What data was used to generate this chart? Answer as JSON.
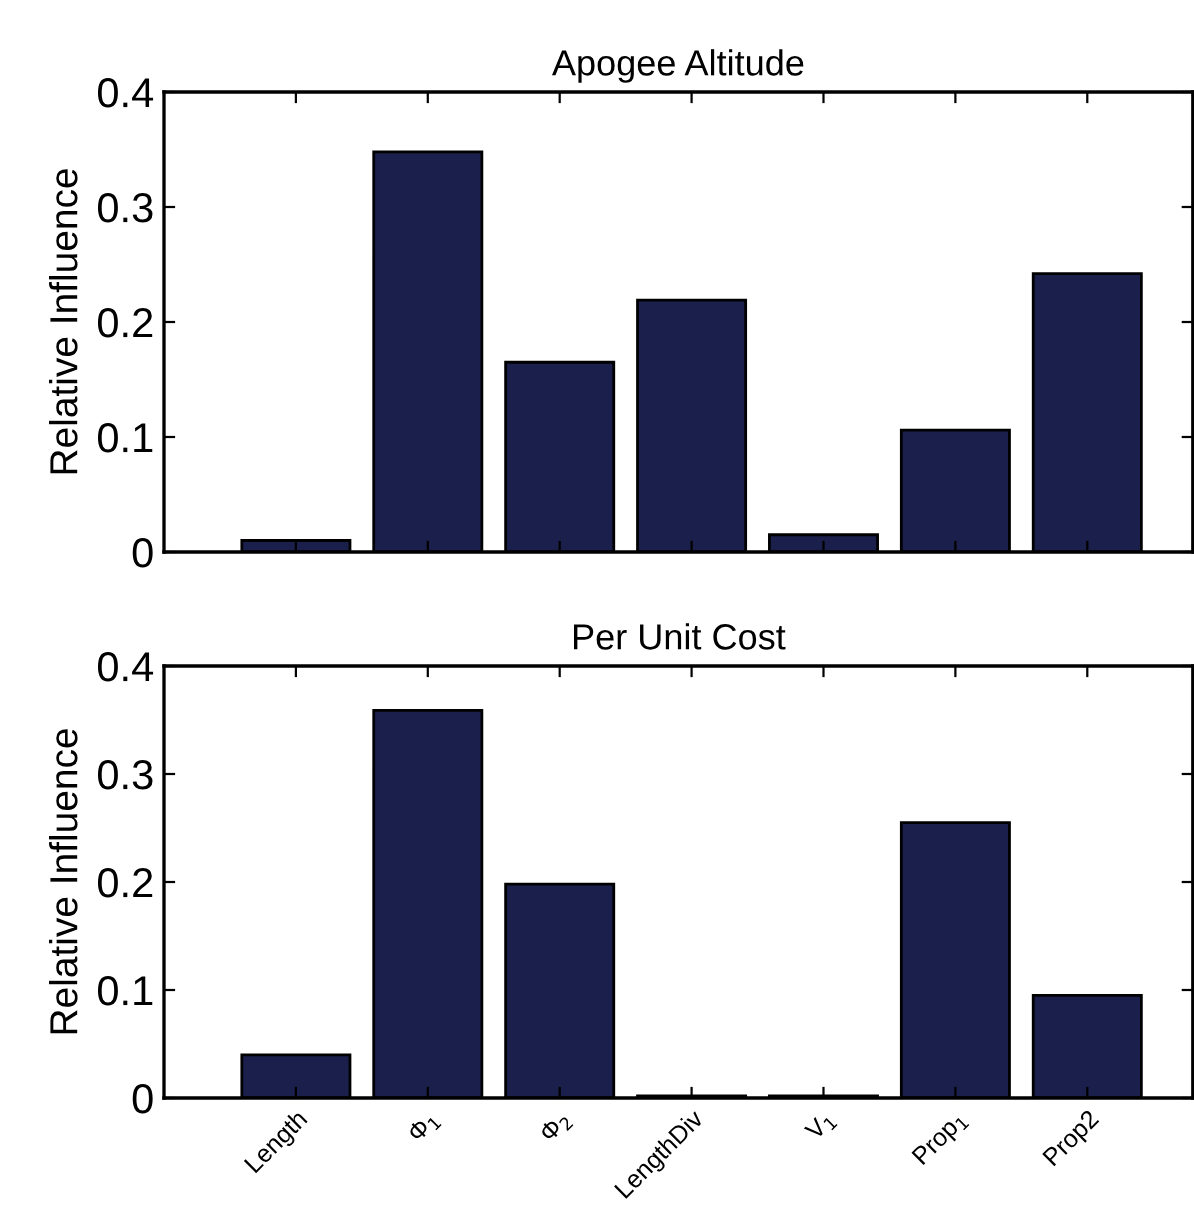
{
  "chart_data": [
    {
      "type": "bar",
      "title": "Apogee Altitude",
      "ylabel": "Relative Influence",
      "categories": [
        null,
        null,
        null,
        null,
        null,
        null,
        null
      ],
      "values": [
        0.01,
        0.348,
        0.165,
        0.219,
        0.015,
        0.106,
        0.242
      ],
      "color": "#1b1f4b",
      "ylim": [
        0,
        0.4
      ],
      "yticks": [
        0,
        0.1,
        0.2,
        0.3,
        0.4
      ],
      "tick_labels": "y",
      "grid": false,
      "legend": false
    },
    {
      "type": "bar",
      "title": "Per Unit Cost",
      "ylabel": "Relative Influence",
      "categories": [
        "Length",
        "Φ$_{1}$",
        "Φ$_{2}$",
        "LengthDiv",
        "V$_{1}$",
        "Prop$_{1}$",
        "Prop2"
      ],
      "values": [
        0.04,
        0.359,
        0.198,
        0.002,
        0.002,
        0.255,
        0.095
      ],
      "color": "#1b1f4b",
      "ylim": [
        0,
        0.4
      ],
      "yticks": [
        0,
        0.1,
        0.2,
        0.3,
        0.4
      ],
      "grid": false,
      "legend": false
    }
  ]
}
